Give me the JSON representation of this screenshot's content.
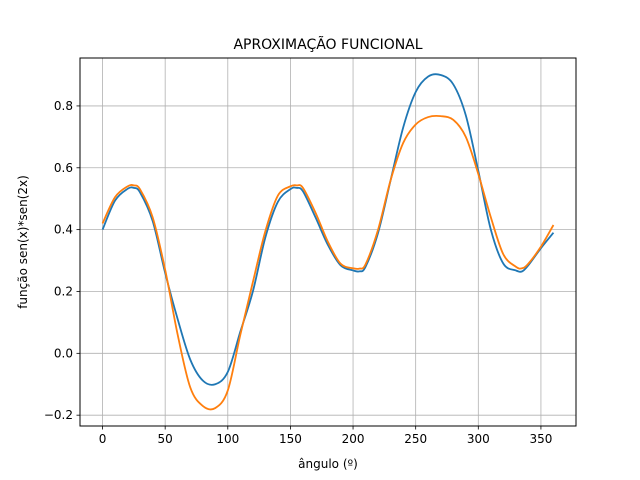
{
  "chart_data": {
    "type": "line",
    "title": "APROXIMAÇÃO FUNCIONAL",
    "xlabel": "ângulo (º)",
    "ylabel": "função sen(x)*sen(2x)",
    "xlim": [
      -18,
      378
    ],
    "ylim": [
      -0.235,
      0.955
    ],
    "xticks": [
      0,
      50,
      100,
      150,
      200,
      250,
      300,
      350
    ],
    "yticks": [
      -0.2,
      0.0,
      0.2,
      0.4,
      0.6,
      0.8
    ],
    "ytick_labels": [
      "−0.2",
      "0.0",
      "0.2",
      "0.4",
      "0.6",
      "0.8"
    ],
    "grid": true,
    "legend": "none",
    "colors": {
      "series_1": "#1f77b4",
      "series_2": "#ff7f0e",
      "grid": "#b0b0b0"
    },
    "series": [
      {
        "color": "#1f77b4",
        "x": [
          0,
          10,
          20,
          25,
          30,
          40,
          50,
          60,
          70,
          80,
          90,
          100,
          110,
          120,
          130,
          140,
          150,
          155,
          160,
          170,
          180,
          190,
          200,
          205,
          210,
          220,
          230,
          240,
          250,
          260,
          270,
          280,
          290,
          300,
          310,
          320,
          330,
          335,
          340,
          350,
          360
        ],
        "y": [
          0.4,
          0.494,
          0.532,
          0.535,
          0.52,
          0.428,
          0.26,
          0.11,
          -0.02,
          -0.088,
          -0.1,
          -0.06,
          0.07,
          0.2,
          0.375,
          0.49,
          0.531,
          0.535,
          0.524,
          0.44,
          0.35,
          0.285,
          0.268,
          0.265,
          0.28,
          0.39,
          0.56,
          0.73,
          0.845,
          0.895,
          0.9,
          0.87,
          0.77,
          0.59,
          0.4,
          0.29,
          0.268,
          0.265,
          0.285,
          0.34,
          0.39
        ]
      },
      {
        "color": "#ff7f0e",
        "x": [
          0,
          10,
          20,
          25,
          30,
          40,
          50,
          60,
          70,
          80,
          90,
          100,
          110,
          120,
          130,
          140,
          150,
          155,
          160,
          170,
          180,
          190,
          200,
          205,
          210,
          220,
          230,
          240,
          250,
          260,
          270,
          280,
          290,
          300,
          310,
          320,
          330,
          335,
          340,
          350,
          360
        ],
        "y": [
          0.42,
          0.505,
          0.54,
          0.543,
          0.53,
          0.44,
          0.27,
          0.06,
          -0.11,
          -0.17,
          -0.177,
          -0.12,
          0.06,
          0.23,
          0.395,
          0.51,
          0.54,
          0.543,
          0.535,
          0.455,
          0.36,
          0.29,
          0.275,
          0.274,
          0.288,
          0.4,
          0.56,
          0.68,
          0.74,
          0.764,
          0.767,
          0.755,
          0.7,
          0.58,
          0.44,
          0.32,
          0.28,
          0.275,
          0.29,
          0.345,
          0.415
        ]
      }
    ]
  }
}
